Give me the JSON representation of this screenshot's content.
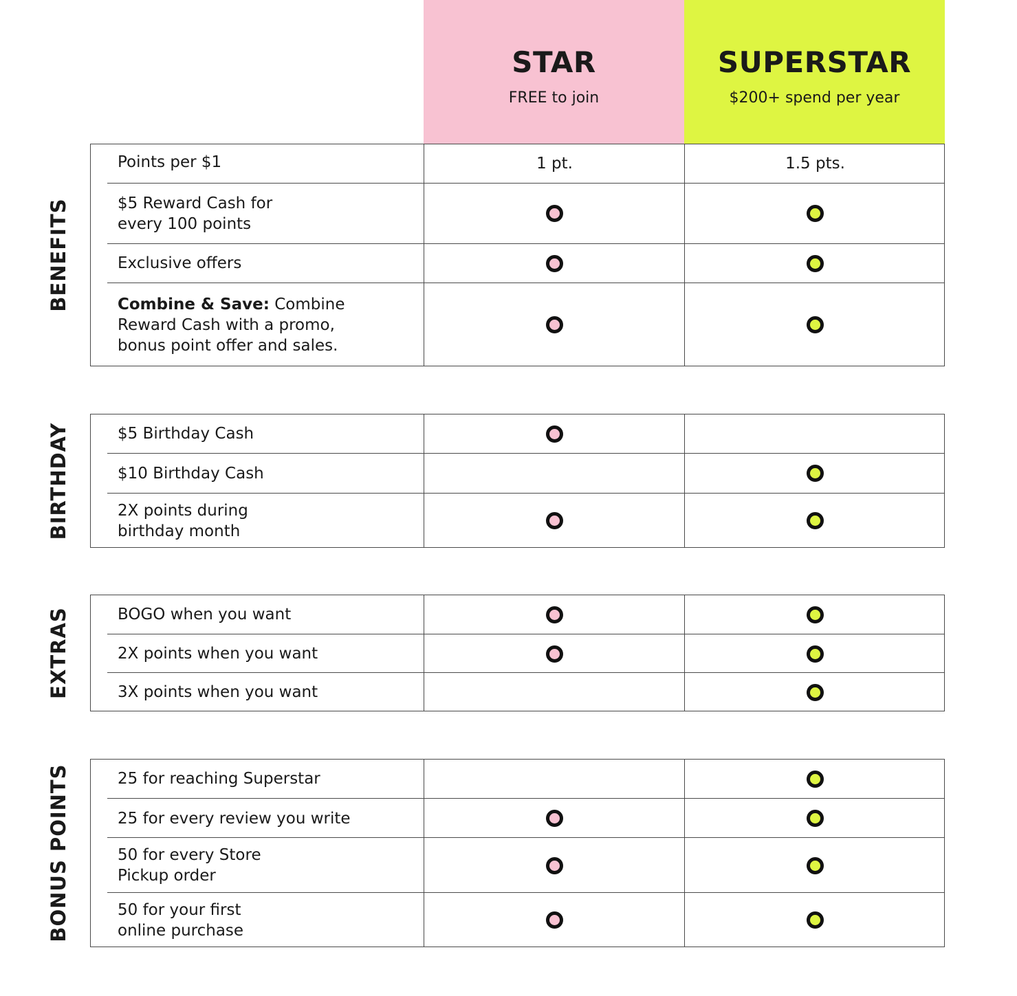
{
  "colors": {
    "star": "#f8c2d2",
    "superstar": "#def542",
    "dot_border": "#111111"
  },
  "tiers": {
    "star": {
      "name": "STAR",
      "subtitle": "FREE to join"
    },
    "superstar": {
      "name": "SUPERSTAR",
      "subtitle": "$200+ spend per year"
    }
  },
  "sections": [
    {
      "label": "BENEFITS",
      "rows": [
        {
          "feature": "Points per $1",
          "star": "1 pt.",
          "superstar": "1.5 pts."
        },
        {
          "feature": "$5 Reward Cash for every 100 points",
          "star": true,
          "superstar": true
        },
        {
          "feature": "Exclusive offers",
          "star": true,
          "superstar": true
        },
        {
          "feature_bold": "Combine & Save:",
          "feature": " Combine Reward Cash with a promo, bonus point offer and sales.",
          "star": true,
          "superstar": true
        }
      ]
    },
    {
      "label": "BIRTHDAY",
      "rows": [
        {
          "feature": "$5 Birthday Cash",
          "star": true,
          "superstar": false
        },
        {
          "feature": "$10 Birthday Cash",
          "star": false,
          "superstar": true
        },
        {
          "feature": "2X points during birthday month",
          "star": true,
          "superstar": true
        }
      ]
    },
    {
      "label": "EXTRAS",
      "rows": [
        {
          "feature": "BOGO when you want",
          "star": true,
          "superstar": true
        },
        {
          "feature": "2X points when you want",
          "star": true,
          "superstar": true
        },
        {
          "feature": "3X points when you want",
          "star": false,
          "superstar": true
        }
      ]
    },
    {
      "label": "BONUS POINTS",
      "rows": [
        {
          "feature": "25 for reaching Superstar",
          "star": false,
          "superstar": true
        },
        {
          "feature": "25 for every review you write",
          "star": true,
          "superstar": true
        },
        {
          "feature": "50 for every Store Pickup order",
          "star": true,
          "superstar": true
        },
        {
          "feature": "50 for your first online purchase",
          "star": true,
          "superstar": true
        }
      ]
    }
  ]
}
